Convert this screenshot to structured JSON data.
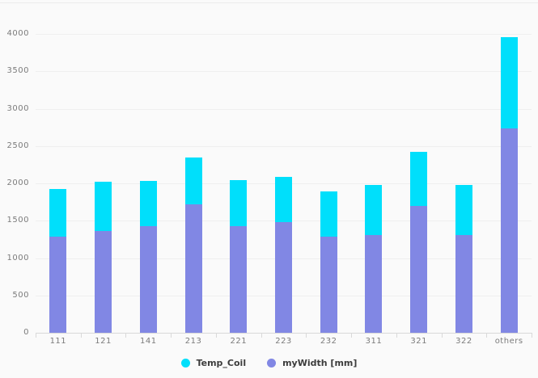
{
  "chart": {
    "background_color": "#fafafa",
    "grid_color": "#efefef",
    "axis_line_color": "#d9d9d9",
    "axis_label_color": "#7b7b7b",
    "legend_text_color": "#3c3c3c"
  },
  "chart_data": {
    "type": "bar",
    "stacked": true,
    "title": "",
    "xlabel": "",
    "ylabel": "",
    "categories": [
      "111",
      "121",
      "141",
      "213",
      "221",
      "223",
      "232",
      "311",
      "321",
      "322",
      "others"
    ],
    "series": [
      {
        "name": "Temp_Coil",
        "color": "#00dffb",
        "values": [
          640,
          660,
          600,
          630,
          610,
          610,
          600,
          670,
          720,
          670,
          1220
        ]
      },
      {
        "name": "myWidth [mm]",
        "color": "#8187e4",
        "values": [
          1290,
          1360,
          1430,
          1720,
          1430,
          1480,
          1290,
          1310,
          1700,
          1310,
          2740
        ]
      }
    ],
    "stack_totals": [
      1930,
      2020,
      2030,
      2350,
      2040,
      2090,
      1890,
      1980,
      2420,
      1980,
      3960
    ],
    "stack_order_bottom_to_top": [
      "myWidth [mm]",
      "Temp_Coil"
    ],
    "ylim": [
      0,
      4000
    ],
    "yticks": [
      0,
      500,
      1000,
      1500,
      2000,
      2500,
      3000,
      3500,
      4000
    ],
    "grid": true,
    "legend_position": "bottom-center"
  }
}
